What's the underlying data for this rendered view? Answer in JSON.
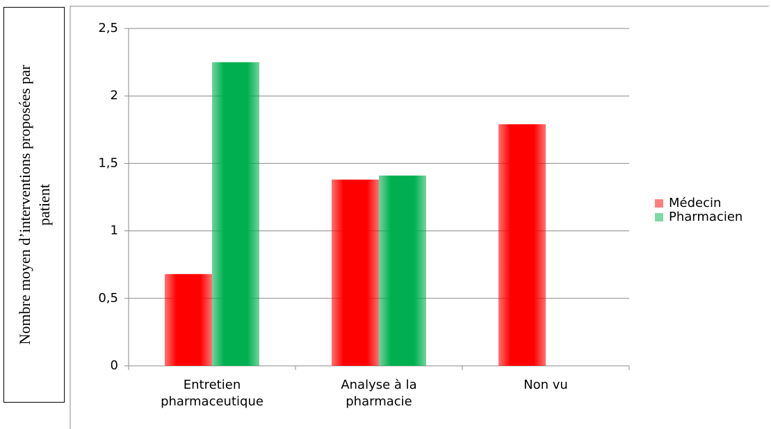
{
  "chart_data": {
    "type": "bar",
    "y_label": "Nombre moyen d’interventions proposées par patient",
    "categories": [
      "Entretien pharmaceutique",
      "Analyse à la pharmacie",
      "Non vu"
    ],
    "series": [
      {
        "name": "Médecin",
        "color": "#ff0000",
        "values": [
          0.68,
          1.38,
          1.79
        ]
      },
      {
        "name": "Pharmacien",
        "color": "#00b050",
        "values": [
          2.25,
          1.41,
          null
        ]
      }
    ],
    "ylim": [
      0,
      2.5
    ],
    "yticks": [
      0,
      {
        "value": 0.5,
        "label": "0,5"
      },
      1,
      {
        "value": 1.5,
        "label": "1,5"
      },
      2,
      {
        "value": 2.5,
        "label": "2,5"
      }
    ],
    "grid": true,
    "legend": "right"
  }
}
